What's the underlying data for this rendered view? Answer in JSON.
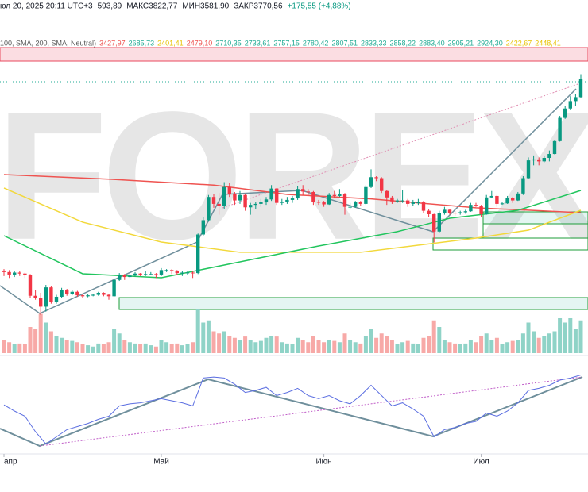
{
  "chart_data": {
    "type": "candlestick",
    "watermark": "RFOREX.c",
    "header": [
      {
        "text": "юл 20, 2025 20:11 UTC+3",
        "color": "#131722"
      },
      {
        "text": "593,89",
        "color": "#131722"
      },
      {
        "text": "МАКС3822,77",
        "color": "#131722"
      },
      {
        "text": "МИН3581,90",
        "color": "#131722"
      },
      {
        "text": "ЗАКР3770,56",
        "color": "#131722"
      },
      {
        "text": "+175,55 (+4,88%)",
        "color": "#089981"
      }
    ],
    "legend": [
      {
        "text": "100, SMA, 200, SMA, Neutral)",
        "color": "#555"
      },
      {
        "text": "3427,97",
        "color": "#ef5350"
      },
      {
        "text": "2685,73",
        "color": "#22ab94"
      },
      {
        "text": "2401,41",
        "color": "#e8c200"
      },
      {
        "text": "2479,10",
        "color": "#ef5350"
      },
      {
        "text": "2710,35",
        "color": "#22ab94"
      },
      {
        "text": "2733,61",
        "color": "#22ab94"
      },
      {
        "text": "2757,15",
        "color": "#22ab94"
      },
      {
        "text": "2780,42",
        "color": "#22ab94"
      },
      {
        "text": "2807,51",
        "color": "#22ab94"
      },
      {
        "text": "2833,33",
        "color": "#22ab94"
      },
      {
        "text": "2858,22",
        "color": "#22ab94"
      },
      {
        "text": "2883,40",
        "color": "#22ab94"
      },
      {
        "text": "2905,21",
        "color": "#22ab94"
      },
      {
        "text": "2924,30",
        "color": "#22ab94"
      },
      {
        "text": "2422,67",
        "color": "#e8c200"
      },
      {
        "text": "2448,41",
        "color": "#e8c200"
      }
    ],
    "xticks": [
      {
        "value": 0,
        "label": "апр"
      },
      {
        "value": 30,
        "label": "Май"
      },
      {
        "value": 61,
        "label": "Июн"
      },
      {
        "value": 91,
        "label": "Июл"
      }
    ],
    "up_color": "#089981",
    "down_color": "#f23645",
    "ohlc": [
      [
        1835,
        1850,
        1780,
        1820
      ],
      [
        1820,
        1840,
        1760,
        1795
      ],
      [
        1795,
        1830,
        1770,
        1815
      ],
      [
        1815,
        1830,
        1780,
        1805
      ],
      [
        1805,
        1815,
        1760,
        1790
      ],
      [
        1790,
        1800,
        1560,
        1580
      ],
      [
        1580,
        1640,
        1540,
        1555
      ],
      [
        1555,
        1610,
        1385,
        1470
      ],
      [
        1470,
        1690,
        1420,
        1665
      ],
      [
        1665,
        1680,
        1500,
        1520
      ],
      [
        1520,
        1590,
        1500,
        1570
      ],
      [
        1570,
        1660,
        1560,
        1640
      ],
      [
        1640,
        1650,
        1580,
        1595
      ],
      [
        1595,
        1640,
        1585,
        1620
      ],
      [
        1620,
        1630,
        1570,
        1585
      ],
      [
        1585,
        1600,
        1560,
        1575
      ],
      [
        1575,
        1600,
        1565,
        1585
      ],
      [
        1585,
        1600,
        1575,
        1590
      ],
      [
        1590,
        1620,
        1580,
        1610
      ],
      [
        1610,
        1615,
        1575,
        1590
      ],
      [
        1590,
        1600,
        1540,
        1575
      ],
      [
        1575,
        1760,
        1570,
        1740
      ],
      [
        1740,
        1810,
        1730,
        1795
      ],
      [
        1795,
        1800,
        1740,
        1770
      ],
      [
        1770,
        1800,
        1760,
        1785
      ],
      [
        1785,
        1820,
        1775,
        1805
      ],
      [
        1805,
        1810,
        1780,
        1795
      ],
      [
        1795,
        1830,
        1780,
        1800
      ],
      [
        1800,
        1820,
        1790,
        1800
      ],
      [
        1800,
        1810,
        1760,
        1795
      ],
      [
        1795,
        1860,
        1780,
        1840
      ],
      [
        1840,
        1850,
        1820,
        1840
      ],
      [
        1840,
        1850,
        1800,
        1835
      ],
      [
        1835,
        1840,
        1790,
        1810
      ],
      [
        1810,
        1830,
        1780,
        1815
      ],
      [
        1815,
        1830,
        1790,
        1815
      ],
      [
        1815,
        1830,
        1760,
        1810
      ],
      [
        1810,
        2210,
        1800,
        2200
      ],
      [
        2200,
        2380,
        2180,
        2345
      ],
      [
        2345,
        2600,
        2330,
        2580
      ],
      [
        2580,
        2610,
        2470,
        2510
      ],
      [
        2510,
        2620,
        2400,
        2490
      ],
      [
        2490,
        2730,
        2460,
        2680
      ],
      [
        2680,
        2720,
        2580,
        2610
      ],
      [
        2610,
        2630,
        2500,
        2545
      ],
      [
        2545,
        2640,
        2510,
        2600
      ],
      [
        2600,
        2610,
        2440,
        2475
      ],
      [
        2475,
        2520,
        2400,
        2500
      ],
      [
        2500,
        2530,
        2460,
        2510
      ],
      [
        2510,
        2560,
        2480,
        2525
      ],
      [
        2525,
        2580,
        2500,
        2555
      ],
      [
        2555,
        2700,
        2540,
        2665
      ],
      [
        2665,
        2670,
        2500,
        2520
      ],
      [
        2520,
        2560,
        2500,
        2530
      ],
      [
        2530,
        2580,
        2510,
        2550
      ],
      [
        2550,
        2590,
        2520,
        2565
      ],
      [
        2565,
        2690,
        2550,
        2660
      ],
      [
        2660,
        2700,
        2600,
        2635
      ],
      [
        2635,
        2660,
        2600,
        2630
      ],
      [
        2630,
        2640,
        2500,
        2530
      ],
      [
        2530,
        2550,
        2500,
        2525
      ],
      [
        2525,
        2540,
        2480,
        2505
      ],
      [
        2505,
        2620,
        2500,
        2600
      ],
      [
        2600,
        2640,
        2570,
        2590
      ],
      [
        2590,
        2660,
        2580,
        2610
      ],
      [
        2610,
        2620,
        2400,
        2480
      ],
      [
        2480,
        2520,
        2460,
        2480
      ],
      [
        2480,
        2540,
        2470,
        2530
      ],
      [
        2530,
        2540,
        2490,
        2510
      ],
      [
        2510,
        2700,
        2500,
        2680
      ],
      [
        2680,
        2860,
        2670,
        2780
      ],
      [
        2780,
        2790,
        2740,
        2770
      ],
      [
        2770,
        2780,
        2620,
        2640
      ],
      [
        2640,
        2650,
        2500,
        2575
      ],
      [
        2575,
        2590,
        2510,
        2535
      ],
      [
        2535,
        2560,
        2520,
        2545
      ],
      [
        2545,
        2650,
        2520,
        2545
      ],
      [
        2545,
        2560,
        2480,
        2510
      ],
      [
        2510,
        2550,
        2490,
        2525
      ],
      [
        2525,
        2560,
        2500,
        2525
      ],
      [
        2525,
        2540,
        2420,
        2440
      ],
      [
        2440,
        2460,
        2380,
        2405
      ],
      [
        2405,
        2410,
        2120,
        2230
      ],
      [
        2230,
        2440,
        2220,
        2415
      ],
      [
        2415,
        2480,
        2400,
        2450
      ],
      [
        2450,
        2460,
        2400,
        2420
      ],
      [
        2420,
        2440,
        2390,
        2415
      ],
      [
        2415,
        2440,
        2400,
        2425
      ],
      [
        2425,
        2450,
        2410,
        2435
      ],
      [
        2435,
        2520,
        2430,
        2500
      ],
      [
        2500,
        2520,
        2480,
        2485
      ],
      [
        2485,
        2500,
        2380,
        2405
      ],
      [
        2405,
        2600,
        2400,
        2575
      ],
      [
        2575,
        2640,
        2570,
        2590
      ],
      [
        2590,
        2600,
        2480,
        2510
      ],
      [
        2510,
        2530,
        2500,
        2515
      ],
      [
        2515,
        2590,
        2510,
        2570
      ],
      [
        2570,
        2580,
        2520,
        2545
      ],
      [
        2545,
        2630,
        2540,
        2615
      ],
      [
        2615,
        2790,
        2600,
        2770
      ],
      [
        2770,
        2980,
        2760,
        2950
      ],
      [
        2950,
        3000,
        2900,
        2960
      ],
      [
        2960,
        2980,
        2900,
        2940
      ],
      [
        2940,
        3000,
        2930,
        2975
      ],
      [
        2975,
        3050,
        2940,
        3015
      ],
      [
        3015,
        3160,
        3010,
        3145
      ],
      [
        3145,
        3400,
        3140,
        3380
      ],
      [
        3380,
        3500,
        3370,
        3475
      ],
      [
        3475,
        3600,
        3460,
        3550
      ],
      [
        3550,
        3620,
        3500,
        3590
      ],
      [
        3590,
        3822,
        3582,
        3770
      ]
    ],
    "volume": [
      30,
      25,
      20,
      22,
      20,
      60,
      55,
      90,
      70,
      50,
      40,
      35,
      30,
      28,
      25,
      20,
      18,
      15,
      22,
      20,
      25,
      55,
      45,
      30,
      25,
      22,
      20,
      22,
      18,
      15,
      30,
      25,
      20,
      22,
      18,
      20,
      25,
      100,
      70,
      75,
      50,
      45,
      50,
      40,
      35,
      30,
      38,
      30,
      25,
      28,
      35,
      40,
      38,
      25,
      22,
      20,
      35,
      30,
      25,
      40,
      30,
      25,
      30,
      28,
      25,
      45,
      30,
      25,
      22,
      40,
      55,
      35,
      45,
      40,
      30,
      20,
      25,
      28,
      22,
      20,
      35,
      40,
      75,
      60,
      30,
      25,
      22,
      20,
      22,
      30,
      25,
      40,
      45,
      30,
      35,
      20,
      25,
      28,
      30,
      45,
      70,
      50,
      35,
      40,
      45,
      50,
      80,
      70,
      80,
      55,
      75
    ],
    "sma": [
      {
        "color": "#ef5350",
        "x": [
          0,
          20,
          40,
          54,
          70,
          90,
          110
        ],
        "values": [
          2806,
          2760,
          2700,
          2606,
          2560,
          2470,
          2421
        ]
      },
      {
        "color": "#f2d83b",
        "x": [
          0,
          15,
          30,
          45,
          68,
          90,
          100,
          110
        ],
        "values": [
          2670,
          2325,
          2124,
          2020,
          2020,
          2164,
          2244,
          2445
        ]
      },
      {
        "color": "#22c55e",
        "x": [
          0,
          15,
          30,
          45,
          60,
          75,
          85,
          98,
          110
        ],
        "values": [
          2188,
          1803,
          1763,
          1923,
          2084,
          2229,
          2365,
          2445,
          2646
        ]
      }
    ],
    "oscillator": {
      "color": "#5b6ee1",
      "x": [
        0,
        2,
        4,
        6,
        8,
        10,
        12,
        14,
        16,
        18,
        20,
        22,
        24,
        26,
        28,
        30,
        32,
        34,
        36,
        38,
        40,
        42,
        44,
        46,
        48,
        50,
        52,
        54,
        56,
        58,
        60,
        62,
        64,
        66,
        68,
        70,
        72,
        74,
        76,
        78,
        80,
        82,
        84,
        86,
        88,
        90,
        92,
        94,
        96,
        98,
        100,
        102,
        104,
        106,
        108,
        110
      ],
      "values": [
        46,
        40,
        35,
        20,
        8,
        15,
        22,
        25,
        28,
        32,
        35,
        45,
        47,
        48,
        50,
        52,
        50,
        48,
        45,
        72,
        73,
        72,
        66,
        58,
        60,
        63,
        55,
        58,
        62,
        55,
        52,
        55,
        50,
        47,
        55,
        65,
        55,
        45,
        48,
        42,
        35,
        15,
        22,
        24,
        28,
        30,
        38,
        35,
        40,
        48,
        60,
        62,
        65,
        70,
        72,
        75
      ]
    }
  }
}
